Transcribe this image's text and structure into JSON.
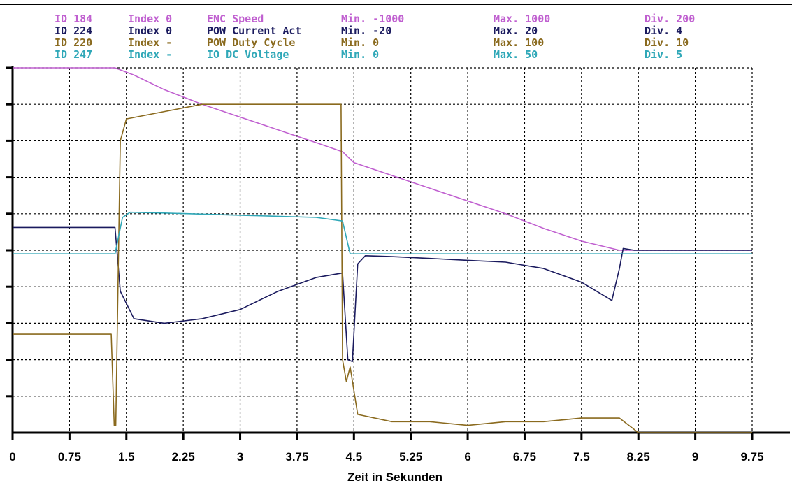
{
  "colors": {
    "enc_speed": "#c060d0",
    "pow_current": "#1a1a5e",
    "pow_duty": "#8a6a1e",
    "io_voltage": "#30a8b8",
    "grid": "#000000",
    "axis": "#000000"
  },
  "header": {
    "rows": [
      {
        "id": "ID 184",
        "index": "Index 0",
        "name": "ENC Speed",
        "min": "Min. -1000",
        "max": "Max. 1000",
        "div": "Div. 200",
        "color": "#c060d0"
      },
      {
        "id": "ID 224",
        "index": "Index 0",
        "name": "POW Current Act",
        "min": "Min. -20",
        "max": "Max. 20",
        "div": "Div. 4",
        "color": "#1a1a5e"
      },
      {
        "id": "ID 220",
        "index": "Index -",
        "name": "POW Duty Cycle",
        "min": "Min. 0",
        "max": "Max. 100",
        "div": "Div. 10",
        "color": "#8a6a1e"
      },
      {
        "id": "ID 247",
        "index": "Index -",
        "name": "IO DC Voltage",
        "min": "Min. 0",
        "max": "Max. 50",
        "div": "Div. 5",
        "color": "#30a8b8"
      }
    ]
  },
  "chart_data": {
    "type": "line",
    "xlabel": "Zeit in Sekunden",
    "xlim": [
      0,
      9.75
    ],
    "ylim_divisions": [
      0,
      10
    ],
    "x_ticks": [
      "0",
      "0.75",
      "1.5",
      "2.25",
      "3",
      "3.75",
      "4.5",
      "5.25",
      "6",
      "6.75",
      "7.5",
      "8.25",
      "9",
      "9.75"
    ],
    "grid": true,
    "series": [
      {
        "name": "ENC Speed",
        "color": "#c060d0",
        "ylim": [
          -1000,
          1000
        ],
        "x": [
          0,
          1.35,
          1.6,
          2.0,
          2.5,
          3.0,
          3.5,
          4.0,
          4.35,
          4.5,
          5.0,
          5.5,
          6.0,
          6.5,
          7.0,
          7.5,
          8.0,
          9.75
        ],
        "y": [
          1000,
          1000,
          960,
          880,
          800,
          730,
          660,
          590,
          540,
          480,
          410,
          340,
          270,
          200,
          120,
          50,
          0,
          0
        ]
      },
      {
        "name": "POW Current Act",
        "color": "#1a1a5e",
        "ylim": [
          -20,
          20
        ],
        "x": [
          0,
          1.35,
          1.42,
          1.6,
          2.0,
          2.5,
          3.0,
          3.5,
          4.0,
          4.35,
          4.42,
          4.48,
          4.55,
          4.65,
          5.0,
          5.5,
          6.0,
          6.5,
          7.0,
          7.5,
          7.9,
          8.0,
          8.05,
          8.2,
          9.75
        ],
        "y": [
          2.5,
          2.5,
          -4.5,
          -7.5,
          -8.0,
          -7.5,
          -6.5,
          -4.5,
          -3.0,
          -2.5,
          -12,
          -12.2,
          -1.5,
          -0.6,
          -0.7,
          -0.9,
          -1.1,
          -1.3,
          -2.0,
          -3.5,
          -5.5,
          -2.0,
          0.2,
          0,
          0
        ]
      },
      {
        "name": "POW Duty Cycle",
        "color": "#8a6a1e",
        "ylim": [
          0,
          100
        ],
        "x": [
          0,
          1.3,
          1.34,
          1.36,
          1.42,
          1.5,
          2.0,
          2.5,
          3.0,
          3.1,
          4.33,
          4.35,
          4.4,
          4.45,
          4.55,
          5.0,
          5.5,
          6.0,
          6.5,
          7.0,
          7.5,
          8.0,
          8.25,
          9.75
        ],
        "y": [
          27,
          27,
          2,
          2,
          80,
          86,
          88,
          90,
          90,
          90,
          90,
          20,
          14,
          18,
          5,
          3,
          3,
          2,
          3,
          3,
          4,
          4,
          0,
          0
        ]
      },
      {
        "name": "IO DC Voltage",
        "color": "#30a8b8",
        "ylim": [
          0,
          50
        ],
        "x": [
          0,
          1.35,
          1.45,
          1.55,
          2.0,
          3.0,
          4.0,
          4.35,
          4.45,
          4.55,
          5.0,
          9.75
        ],
        "y": [
          24.5,
          24.5,
          29.5,
          30.2,
          30.1,
          29.8,
          29.5,
          29.0,
          24.5,
          24.5,
          24.5,
          24.5
        ]
      }
    ]
  }
}
